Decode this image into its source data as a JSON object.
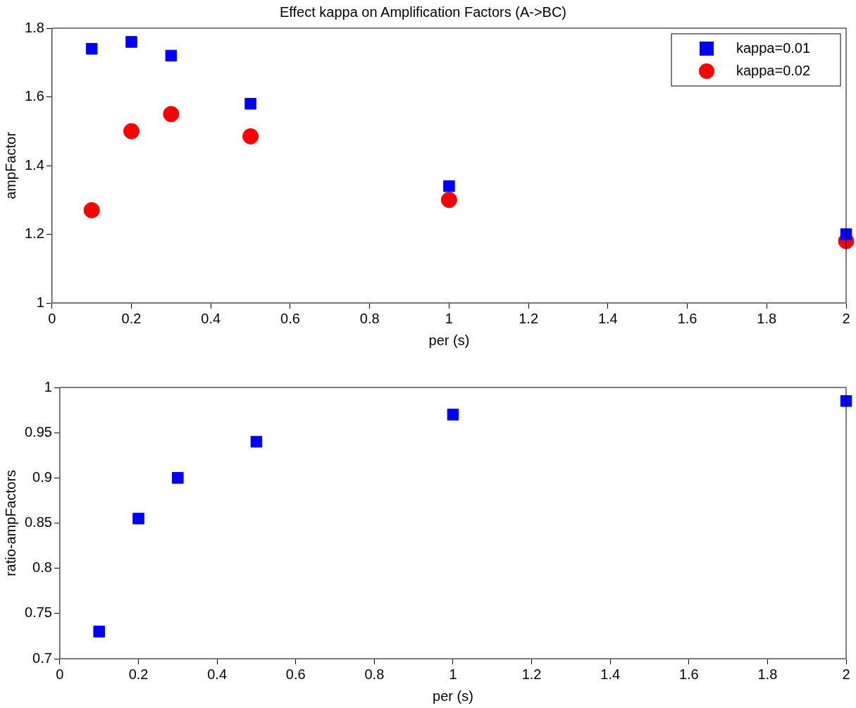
{
  "chart_data": [
    {
      "type": "scatter",
      "title": "Effect kappa on Amplification Factors (A->BC)",
      "xlabel": "per (s)",
      "ylabel": "ampFactor",
      "x": [
        0.1,
        0.2,
        0.3,
        0.5,
        1,
        2
      ],
      "series": [
        {
          "name": "kappa=0.01",
          "color": "#0000ff",
          "marker": "square",
          "values": [
            1.74,
            1.76,
            1.72,
            1.58,
            1.34,
            1.2
          ]
        },
        {
          "name": "kappa=0.02",
          "color": "#ff0000",
          "marker": "circle",
          "values": [
            1.27,
            1.5,
            1.55,
            1.485,
            1.3,
            1.18
          ]
        }
      ],
      "xlim": [
        0,
        2
      ],
      "xticks": [
        0,
        0.2,
        0.4,
        0.6,
        0.8,
        1,
        1.2,
        1.4,
        1.6,
        1.8,
        2
      ],
      "ylim": [
        1,
        1.8
      ],
      "yticks": [
        1,
        1.2,
        1.4,
        1.6,
        1.8
      ],
      "grid": false,
      "legend": "top right"
    },
    {
      "type": "scatter",
      "xlabel": "per (s)",
      "ylabel": "ratio-ampFactors",
      "x": [
        0.1,
        0.2,
        0.3,
        0.5,
        1,
        2
      ],
      "series": [
        {
          "color": "#0000ff",
          "marker": "square",
          "values": [
            0.73,
            0.855,
            0.9,
            0.94,
            0.97,
            0.985
          ]
        }
      ],
      "xlim": [
        0,
        2
      ],
      "xticks": [
        0,
        0.2,
        0.4,
        0.6,
        0.8,
        1,
        1.2,
        1.4,
        1.6,
        1.8,
        2
      ],
      "ylim": [
        0.7,
        1
      ],
      "yticks": [
        0.7,
        0.75,
        0.8,
        0.85,
        0.9,
        0.95,
        1
      ],
      "grid": false,
      "legend": false
    }
  ]
}
